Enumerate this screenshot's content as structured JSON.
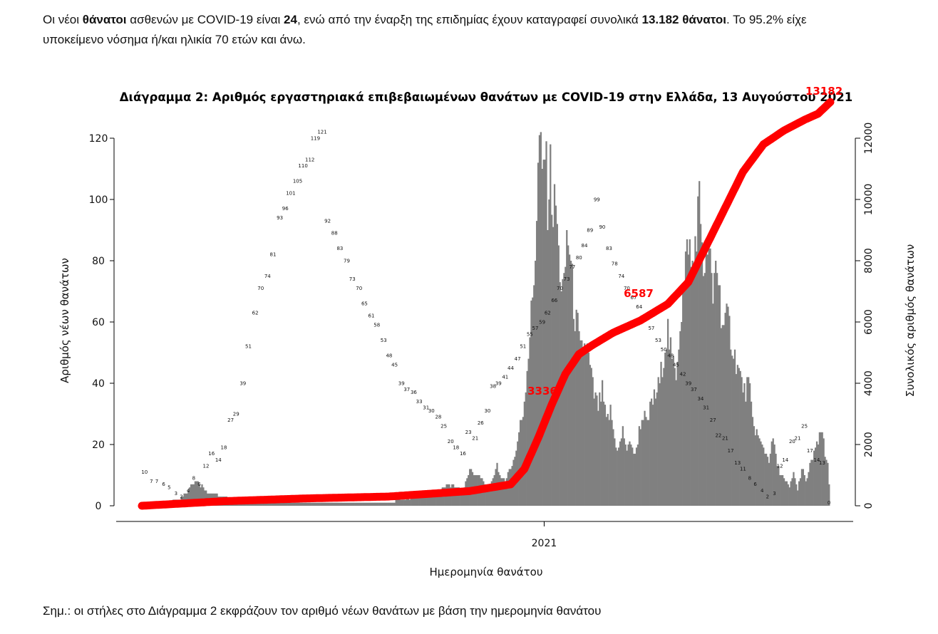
{
  "intro": {
    "p1": "Οι νέοι ",
    "b1": "θάνατοι",
    "p2": " ασθενών με COVID-19 είναι ",
    "b2": "24",
    "p3": ", ενώ από την έναρξη της επιδημίας έχουν καταγραφεί συνολικά ",
    "b3": "13.182 θάνατοι",
    "p4": ".  Το 95.2% είχε",
    "line2": "υποκείμενο νόσημα ή/και ηλικία 70 ετών και άνω."
  },
  "note": "Σημ.: οι στήλες στο Διάγραμμα 2 εκφράζουν τον αριθμό νέων θανάτων με βάση την ημερομηνία θανάτου",
  "colors": {
    "bar": "#808080",
    "cumulative": "#ff0000",
    "axis": "#000000"
  },
  "chart_data": {
    "type": "bar",
    "title": "Διάγραμμα 2: Αριθμός εργαστηριακά επιβεβαιωμένων θανάτων με COVID-19 στην Ελλάδα, 13 Αυγούστου 2021",
    "xlabel": "Ημερομηνία θανάτου",
    "ylabel": "Αριθμός νέων θανάτων",
    "y2label": "Συνολικός αριθμός θανάτων",
    "x_tick_label": "2021",
    "ylim": [
      0,
      120
    ],
    "yticks": [
      0,
      20,
      40,
      60,
      80,
      100,
      120
    ],
    "y2lim": [
      0,
      12000
    ],
    "y2ticks": [
      0,
      2000,
      4000,
      6000,
      8000,
      10000,
      12000
    ],
    "date_range": [
      "2020-03-12",
      "2021-08-13"
    ],
    "daily_keypoints": [
      [
        0,
        0
      ],
      [
        20,
        1
      ],
      [
        30,
        3
      ],
      [
        40,
        8
      ],
      [
        45,
        6
      ],
      [
        50,
        4
      ],
      [
        70,
        2
      ],
      [
        100,
        1
      ],
      [
        150,
        1
      ],
      [
        180,
        1
      ],
      [
        200,
        3
      ],
      [
        215,
        4
      ],
      [
        225,
        7
      ],
      [
        235,
        5
      ],
      [
        240,
        12
      ],
      [
        250,
        8
      ],
      [
        255,
        6
      ],
      [
        260,
        14
      ],
      [
        263,
        8
      ],
      [
        266,
        9
      ],
      [
        270,
        12
      ],
      [
        274,
        18
      ],
      [
        276,
        24
      ],
      [
        279,
        30
      ],
      [
        282,
        45
      ],
      [
        285,
        62
      ],
      [
        287,
        74
      ],
      [
        289,
        95
      ],
      [
        291,
        121
      ],
      [
        293,
        105
      ],
      [
        295,
        118
      ],
      [
        297,
        99
      ],
      [
        299,
        110
      ],
      [
        301,
        95
      ],
      [
        303,
        99
      ],
      [
        305,
        82
      ],
      [
        307,
        72
      ],
      [
        309,
        70
      ],
      [
        311,
        88
      ],
      [
        313,
        84
      ],
      [
        315,
        72
      ],
      [
        317,
        61
      ],
      [
        319,
        58
      ],
      [
        321,
        50
      ],
      [
        323,
        53
      ],
      [
        326,
        51
      ],
      [
        329,
        42
      ],
      [
        331,
        36
      ],
      [
        334,
        32
      ],
      [
        337,
        37
      ],
      [
        340,
        27
      ],
      [
        343,
        31
      ],
      [
        346,
        22
      ],
      [
        349,
        18
      ],
      [
        352,
        25
      ],
      [
        355,
        18
      ],
      [
        358,
        21
      ],
      [
        361,
        16
      ],
      [
        364,
        25
      ],
      [
        367,
        30
      ],
      [
        370,
        26
      ],
      [
        373,
        34
      ],
      [
        376,
        36
      ],
      [
        379,
        40
      ],
      [
        382,
        50
      ],
      [
        385,
        57
      ],
      [
        388,
        47
      ],
      [
        391,
        44
      ],
      [
        394,
        60
      ],
      [
        397,
        72
      ],
      [
        400,
        89
      ],
      [
        402,
        77
      ],
      [
        404,
        80
      ],
      [
        406,
        92
      ],
      [
        408,
        99
      ],
      [
        410,
        88
      ],
      [
        412,
        72
      ],
      [
        414,
        86
      ],
      [
        416,
        78
      ],
      [
        418,
        66
      ],
      [
        420,
        82
      ],
      [
        422,
        74
      ],
      [
        424,
        64
      ],
      [
        426,
        58
      ],
      [
        429,
        61
      ],
      [
        432,
        53
      ],
      [
        435,
        47
      ],
      [
        438,
        42
      ],
      [
        441,
        37
      ],
      [
        444,
        40
      ],
      [
        447,
        28
      ],
      [
        450,
        24
      ],
      [
        453,
        20
      ],
      [
        456,
        18
      ],
      [
        459,
        15
      ],
      [
        462,
        22
      ],
      [
        465,
        13
      ],
      [
        468,
        10
      ],
      [
        471,
        8
      ],
      [
        474,
        6
      ],
      [
        477,
        11
      ],
      [
        480,
        5
      ],
      [
        483,
        12
      ],
      [
        486,
        8
      ],
      [
        489,
        13
      ],
      [
        492,
        18
      ],
      [
        495,
        20
      ],
      [
        498,
        25
      ],
      [
        500,
        16
      ],
      [
        502,
        14
      ],
      [
        504,
        0
      ]
    ],
    "daily_labeled_values": [
      10,
      7,
      7,
      6,
      5,
      3,
      2,
      4,
      8,
      6,
      12,
      16,
      14,
      18,
      27,
      29,
      39,
      51,
      62,
      70,
      74,
      81,
      93,
      96,
      101,
      105,
      110,
      112,
      119,
      121,
      92,
      88,
      83,
      79,
      73,
      70,
      65,
      61,
      58,
      53,
      48,
      45,
      39,
      37,
      36,
      33,
      31,
      30,
      28,
      25,
      20,
      18,
      16,
      23,
      21,
      26,
      30,
      38,
      39,
      41,
      44,
      47,
      51,
      55,
      57,
      59,
      62,
      66,
      70,
      73,
      77,
      80,
      84,
      89,
      99,
      90,
      83,
      78,
      74,
      70,
      67,
      64,
      61,
      57,
      53,
      50,
      48,
      45,
      42,
      39,
      37,
      34,
      31,
      27,
      22,
      21,
      17,
      13,
      11,
      8,
      6,
      4,
      2,
      3,
      12,
      14,
      20,
      21,
      25,
      17,
      14,
      13,
      0
    ],
    "cumulative_keypoints": [
      [
        0,
        0
      ],
      [
        60,
        150
      ],
      [
        120,
        240
      ],
      [
        180,
        300
      ],
      [
        240,
        480
      ],
      [
        270,
        700
      ],
      [
        280,
        1200
      ],
      [
        290,
        2200
      ],
      [
        300,
        3300
      ],
      [
        310,
        4300
      ],
      [
        320,
        4950
      ],
      [
        330,
        5250
      ],
      [
        345,
        5650
      ],
      [
        365,
        6050
      ],
      [
        385,
        6587
      ],
      [
        400,
        7300
      ],
      [
        410,
        8200
      ],
      [
        420,
        9100
      ],
      [
        430,
        10000
      ],
      [
        440,
        10900
      ],
      [
        455,
        11800
      ],
      [
        470,
        12250
      ],
      [
        485,
        12600
      ],
      [
        495,
        12800
      ],
      [
        504,
        13182
      ]
    ],
    "cumulative_labels": [
      "3336",
      "6587",
      "13182"
    ]
  }
}
